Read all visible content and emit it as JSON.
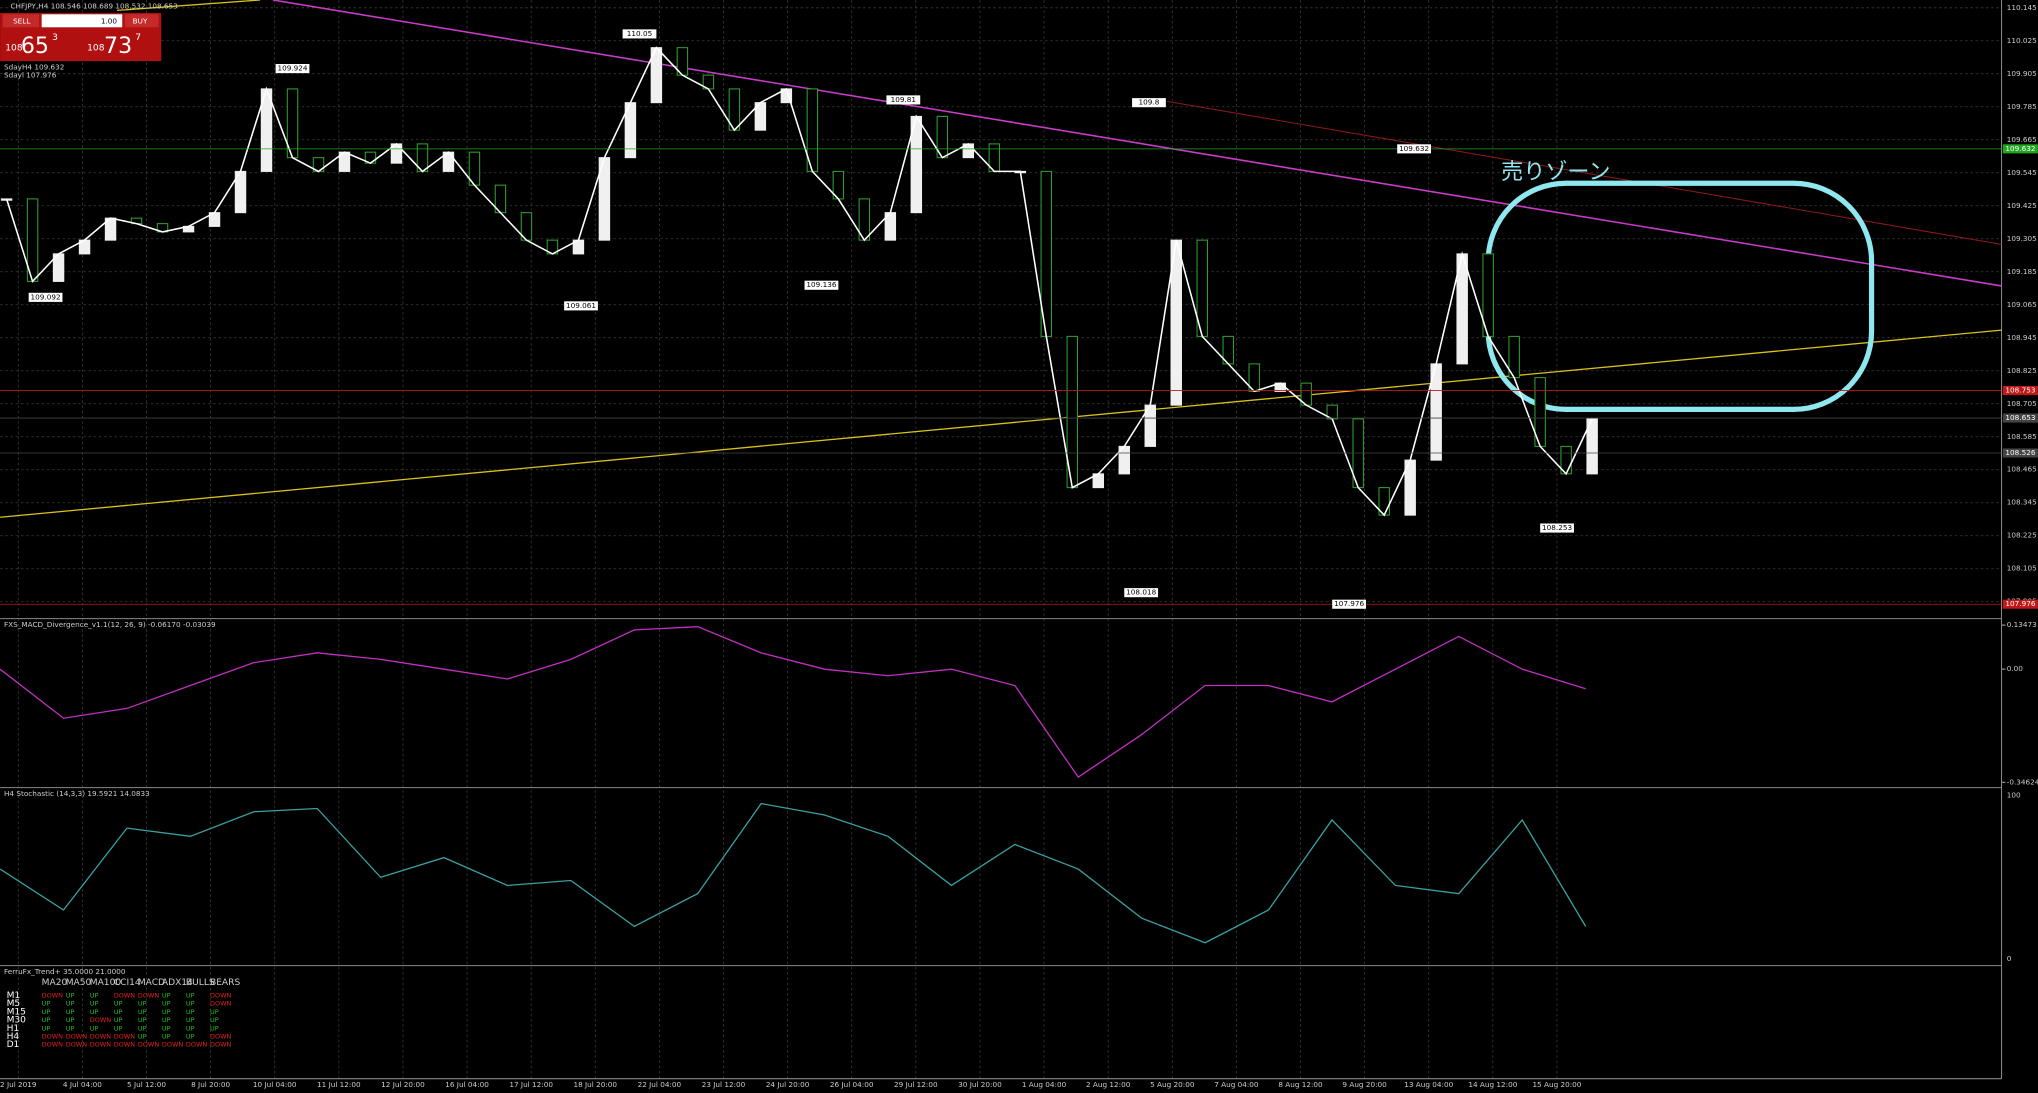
{
  "header": {
    "symbol_info": "CHFJPY,H4  108.546 108.689 108.532 108.653",
    "sell": "SELL",
    "buy": "BUY",
    "lot": "1.00",
    "sell_prefix": "108",
    "sell_big": "65",
    "sell_sup": "3",
    "buy_prefix": "108",
    "buy_big": "73",
    "buy_sup": "7",
    "sday_high": "SdayH4 109.632",
    "sday_low": "Sdayl 107.976"
  },
  "price_axis": {
    "ticks": [
      110.145,
      110.025,
      109.905,
      109.785,
      109.665,
      109.545,
      109.425,
      109.305,
      109.185,
      109.065,
      108.945,
      108.825,
      108.705,
      108.585,
      108.465,
      108.345,
      108.225,
      108.105,
      107.985
    ]
  },
  "price_markers": [
    {
      "value": 109.632,
      "color": "#1fa51f"
    },
    {
      "value": 108.753,
      "color": "#c01818"
    },
    {
      "value": 108.653,
      "color": "#444444"
    },
    {
      "value": 108.526,
      "color": "#444444"
    },
    {
      "value": 107.976,
      "color": "#c01818"
    }
  ],
  "zigzag_labels": [
    109.092,
    109.924,
    109.061,
    110.05,
    109.136,
    109.81,
    109.8,
    109.632,
    108.018,
    107.976,
    108.253
  ],
  "candles": {
    "closes": [
      109.45,
      109.15,
      109.25,
      109.3,
      109.38,
      109.36,
      109.33,
      109.35,
      109.4,
      109.55,
      109.85,
      109.6,
      109.55,
      109.62,
      109.58,
      109.65,
      109.55,
      109.62,
      109.5,
      109.4,
      109.3,
      109.25,
      109.3,
      109.6,
      109.8,
      110.0,
      109.9,
      109.85,
      109.7,
      109.8,
      109.85,
      109.55,
      109.45,
      109.3,
      109.4,
      109.75,
      109.6,
      109.65,
      109.55,
      109.55,
      108.95,
      108.4,
      108.45,
      108.55,
      108.7,
      109.3,
      108.95,
      108.85,
      108.75,
      108.78,
      108.7,
      108.65,
      108.4,
      108.3,
      108.5,
      108.85,
      109.25,
      108.95,
      108.8,
      108.55,
      108.45,
      108.65
    ]
  },
  "annotation": "売りゾーン",
  "time_axis": [
    "2 Jul 2019",
    "4 Jul 04:00",
    "5 Jul 12:00",
    "8 Jul 20:00",
    "10 Jul 04:00",
    "11 Jul 12:00",
    "12 Jul 20:00",
    "16 Jul 04:00",
    "17 Jul 12:00",
    "18 Jul 20:00",
    "22 Jul 04:00",
    "23 Jul 12:00",
    "24 Jul 20:00",
    "26 Jul 04:00",
    "29 Jul 12:00",
    "30 Jul 20:00",
    "1 Aug 04:00",
    "2 Aug 12:00",
    "5 Aug 20:00",
    "7 Aug 04:00",
    "8 Aug 12:00",
    "9 Aug 20:00",
    "13 Aug 04:00",
    "14 Aug 12:00",
    "15 Aug 20:00"
  ],
  "macd": {
    "title": "FXS_MACD_Divergence_v1.1(12, 26, 9) -0.06170 -0.03039",
    "ticks": [
      0.13473,
      {
        "value": 0,
        "label": "0.00"
      },
      -0.34624
    ],
    "values": [
      0.0,
      -0.15,
      -0.12,
      -0.05,
      0.02,
      0.05,
      0.03,
      0.0,
      -0.03,
      0.03,
      0.12,
      0.13,
      0.05,
      0.0,
      -0.02,
      0.0,
      -0.05,
      -0.33,
      -0.2,
      -0.05,
      -0.05,
      -0.1,
      0.0,
      0.1,
      0.0,
      -0.06
    ]
  },
  "stoch": {
    "title": "H4 Stochastic (14,3,3) 19.5921 14.0833",
    "ticks": [
      100,
      0
    ],
    "values": [
      55,
      30,
      80,
      75,
      90,
      92,
      50,
      62,
      45,
      48,
      20,
      40,
      95,
      88,
      75,
      45,
      70,
      55,
      25,
      10,
      30,
      85,
      45,
      40,
      85,
      20
    ]
  },
  "trend": {
    "title": "FerruFx_Trend+ 35.0000 21.0000",
    "columns": [
      "MA20",
      "MA50",
      "MA100",
      "CCI14",
      "MACD",
      "ADX14",
      "BULLS",
      "BEARS"
    ],
    "rows": [
      {
        "tf": "M1",
        "values": [
          "DOWN",
          "UP",
          "UP",
          "DOWN",
          "DOWN",
          "UP",
          "UP",
          "DOWN"
        ]
      },
      {
        "tf": "M5",
        "values": [
          "UP",
          "UP",
          "UP",
          "UP",
          "UP",
          "UP",
          "UP",
          "DOWN"
        ]
      },
      {
        "tf": "M15",
        "values": [
          "UP",
          "UP",
          "UP",
          "UP",
          "UP",
          "UP",
          "UP",
          "UP"
        ]
      },
      {
        "tf": "M30",
        "values": [
          "UP",
          "UP",
          "DOWN",
          "UP",
          "UP",
          "UP",
          "UP",
          "UP"
        ]
      },
      {
        "tf": "H1",
        "values": [
          "UP",
          "UP",
          "UP",
          "UP",
          "UP",
          "UP",
          "UP",
          "UP"
        ]
      },
      {
        "tf": "H4",
        "values": [
          "DOWN",
          "DOWN",
          "DOWN",
          "DOWN",
          "UP",
          "UP",
          "UP",
          "DOWN"
        ]
      },
      {
        "tf": "D1",
        "values": [
          "DOWN",
          "DOWN",
          "DOWN",
          "DOWN",
          "DOWN",
          "DOWN",
          "DOWN",
          "DOWN"
        ]
      }
    ]
  }
}
